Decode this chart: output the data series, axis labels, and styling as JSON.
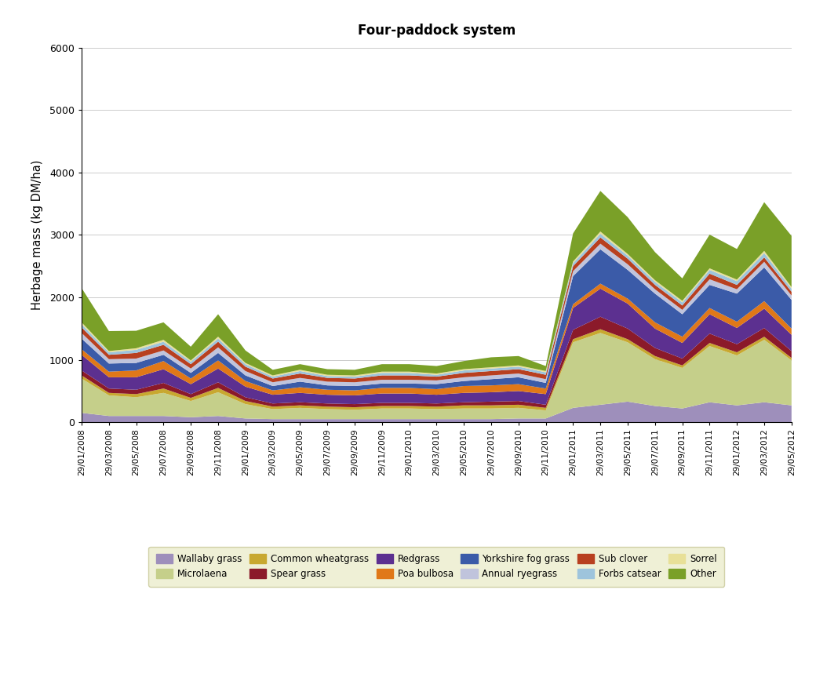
{
  "title": "Four-paddock system",
  "ylabel": "Herbage mass (kg DM/ha)",
  "ylim": [
    0,
    6000
  ],
  "yticks": [
    0,
    1000,
    2000,
    3000,
    4000,
    5000,
    6000
  ],
  "species": [
    "Wallaby grass",
    "Microlaena",
    "Common wheatgrass",
    "Spear grass",
    "Redgrass",
    "Poa bulbosa",
    "Yorkshire fog grass",
    "Annual ryegrass",
    "Sub clover",
    "Forbs catsear",
    "Sorrel",
    "Other"
  ],
  "colors": [
    "#9E8FBB",
    "#C5CF8A",
    "#C8A830",
    "#8B1A2A",
    "#5C3090",
    "#E07818",
    "#3B5BA8",
    "#C0C4DC",
    "#B84020",
    "#9EC4DC",
    "#E8E098",
    "#7AA028"
  ],
  "dates": [
    "29/01/2008",
    "29/03/2008",
    "29/05/2008",
    "29/07/2008",
    "29/09/2008",
    "29/11/2008",
    "29/01/2009",
    "29/03/2009",
    "29/05/2009",
    "29/07/2009",
    "29/09/2009",
    "29/11/2009",
    "29/01/2010",
    "29/03/2010",
    "29/05/2010",
    "29/07/2010",
    "29/09/2010",
    "29/11/2010",
    "29/01/2011",
    "29/03/2011",
    "29/05/2011",
    "29/07/2011",
    "29/09/2011",
    "29/11/2011",
    "29/01/2012",
    "29/03/2012",
    "29/05/2012"
  ],
  "data": {
    "Wallaby grass": [
      150,
      100,
      100,
      100,
      80,
      100,
      60,
      50,
      50,
      50,
      50,
      50,
      50,
      50,
      50,
      50,
      60,
      60,
      230,
      280,
      330,
      260,
      220,
      320,
      270,
      320,
      270
    ],
    "Microlaena": [
      550,
      330,
      300,
      370,
      260,
      380,
      230,
      160,
      180,
      160,
      150,
      170,
      170,
      160,
      170,
      170,
      170,
      130,
      1050,
      1150,
      950,
      750,
      650,
      900,
      800,
      1000,
      720
    ],
    "Common wheatgrass": [
      50,
      40,
      50,
      70,
      50,
      70,
      50,
      40,
      40,
      40,
      40,
      40,
      40,
      40,
      50,
      50,
      50,
      40,
      50,
      60,
      50,
      50,
      40,
      50,
      50,
      50,
      40
    ],
    "Spear grass": [
      80,
      70,
      70,
      90,
      60,
      90,
      60,
      50,
      50,
      50,
      50,
      50,
      50,
      50,
      50,
      60,
      60,
      50,
      150,
      200,
      170,
      130,
      110,
      150,
      130,
      140,
      110
    ],
    "Redgrass": [
      250,
      180,
      200,
      220,
      160,
      220,
      170,
      140,
      150,
      140,
      140,
      150,
      150,
      140,
      150,
      150,
      160,
      170,
      350,
      450,
      400,
      310,
      250,
      310,
      260,
      310,
      260
    ],
    "Poa bulbosa": [
      90,
      90,
      110,
      130,
      90,
      130,
      90,
      70,
      90,
      80,
      80,
      90,
      90,
      90,
      110,
      110,
      110,
      90,
      60,
      80,
      80,
      100,
      100,
      100,
      100,
      120,
      100
    ],
    "Yorkshire fog grass": [
      170,
      130,
      120,
      100,
      90,
      120,
      90,
      70,
      90,
      70,
      70,
      70,
      70,
      80,
      80,
      100,
      110,
      90,
      450,
      550,
      460,
      460,
      360,
      370,
      450,
      540,
      460
    ],
    "Annual ryegrass": [
      90,
      70,
      70,
      70,
      70,
      90,
      70,
      60,
      60,
      60,
      60,
      60,
      60,
      60,
      60,
      60,
      60,
      60,
      80,
      90,
      90,
      70,
      70,
      90,
      70,
      90,
      70
    ],
    "Sub clover": [
      90,
      70,
      90,
      90,
      70,
      90,
      70,
      60,
      70,
      60,
      60,
      70,
      70,
      60,
      70,
      70,
      70,
      70,
      80,
      100,
      90,
      70,
      70,
      90,
      70,
      70,
      60
    ],
    "Forbs catsear": [
      50,
      40,
      50,
      50,
      40,
      50,
      40,
      30,
      40,
      30,
      30,
      40,
      40,
      30,
      40,
      40,
      40,
      40,
      50,
      60,
      50,
      50,
      50,
      60,
      60,
      70,
      50
    ],
    "Sorrel": [
      30,
      20,
      25,
      30,
      20,
      30,
      20,
      20,
      20,
      20,
      20,
      20,
      20,
      20,
      20,
      20,
      20,
      20,
      25,
      35,
      25,
      25,
      25,
      25,
      25,
      35,
      25
    ],
    "Other": [
      550,
      320,
      280,
      280,
      220,
      360,
      200,
      90,
      90,
      90,
      90,
      120,
      120,
      120,
      130,
      160,
      150,
      80,
      450,
      650,
      590,
      450,
      360,
      540,
      490,
      780,
      820
    ]
  },
  "legend_facecolor": "#ECEDCC",
  "legend_edgecolor": "#C8C898"
}
